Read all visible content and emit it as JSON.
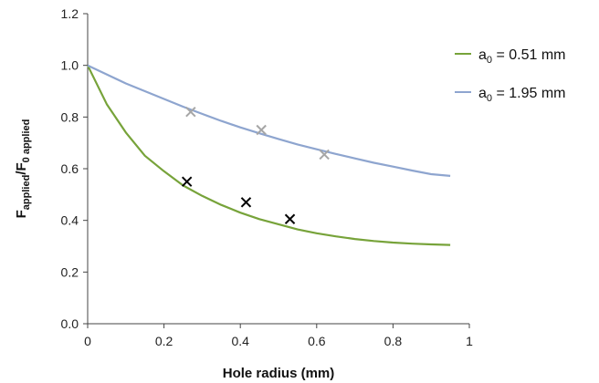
{
  "chart_data": {
    "type": "line",
    "xlabel": "Hole radius (mm)",
    "ylabel_main": "F",
    "ylabel_sub1": "applied",
    "ylabel_mid": "/F",
    "ylabel_sub2": "0 applied",
    "xlim": [
      0,
      1
    ],
    "ylim": [
      0,
      1.2
    ],
    "x_ticks": [
      0,
      0.2,
      0.4,
      0.6,
      0.8,
      1
    ],
    "x_tick_labels": [
      "0",
      "0.2",
      "0.4",
      "0.6",
      "0.8",
      "1"
    ],
    "y_ticks": [
      0,
      0.2,
      0.4,
      0.6,
      0.8,
      1.0,
      1.2
    ],
    "y_tick_labels": [
      "0.0",
      "0.2",
      "0.4",
      "0.6",
      "0.8",
      "1.0",
      "1.2"
    ],
    "grid": false,
    "legend_position": "top-right",
    "series": [
      {
        "legend_main": "a",
        "legend_sub": "0",
        "legend_rest": " = 0.51 mm",
        "color": "#77a33a",
        "marker_color": "#000000",
        "x": [
          0,
          0.05,
          0.1,
          0.15,
          0.2,
          0.25,
          0.3,
          0.35,
          0.4,
          0.45,
          0.5,
          0.55,
          0.6,
          0.65,
          0.7,
          0.75,
          0.8,
          0.85,
          0.9,
          0.95
        ],
        "y": [
          1.0,
          0.85,
          0.74,
          0.65,
          0.59,
          0.535,
          0.495,
          0.46,
          0.43,
          0.405,
          0.385,
          0.365,
          0.35,
          0.338,
          0.328,
          0.32,
          0.314,
          0.31,
          0.307,
          0.305
        ],
        "measured_x": [
          0.26,
          0.415,
          0.53
        ],
        "measured_y": [
          0.55,
          0.47,
          0.405
        ]
      },
      {
        "legend_main": "a",
        "legend_sub": "0",
        "legend_rest": " = 1.95 mm",
        "color": "#8ea5cf",
        "marker_color": "#a6a6a6",
        "x": [
          0,
          0.05,
          0.1,
          0.15,
          0.2,
          0.25,
          0.3,
          0.35,
          0.4,
          0.45,
          0.5,
          0.55,
          0.6,
          0.65,
          0.7,
          0.75,
          0.8,
          0.85,
          0.9,
          0.95
        ],
        "y": [
          1.0,
          0.965,
          0.93,
          0.9,
          0.87,
          0.84,
          0.812,
          0.785,
          0.76,
          0.737,
          0.715,
          0.694,
          0.675,
          0.657,
          0.64,
          0.623,
          0.608,
          0.593,
          0.579,
          0.572
        ],
        "measured_x": [
          0.27,
          0.455,
          0.62
        ],
        "measured_y": [
          0.82,
          0.75,
          0.655
        ]
      }
    ]
  }
}
